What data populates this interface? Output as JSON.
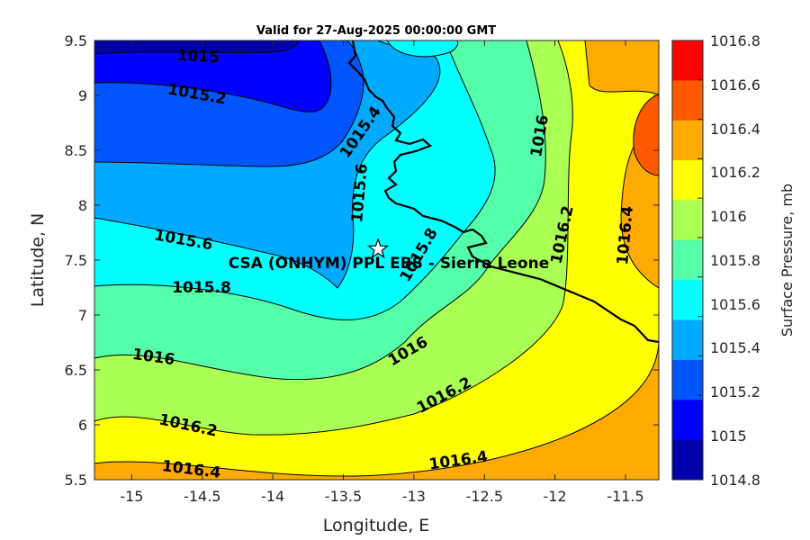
{
  "title": "Valid for 27-Aug-2025 00:00:00 GMT",
  "xlabel": "Longitude, E",
  "ylabel": "Latitude, N",
  "x_ticks": [
    "-15",
    "-14.5",
    "-14",
    "-13.5",
    "-13",
    "-12.5",
    "-12",
    "-11.5"
  ],
  "y_ticks": [
    "9.5",
    "9",
    "8.5",
    "8",
    "7.5",
    "7",
    "6.5",
    "6",
    "5.5"
  ],
  "colorbar": {
    "label": "Surface Pressure, mb",
    "ticks": [
      "1016.8",
      "1016.6",
      "1016.4",
      "1016.2",
      "1016",
      "1015.8",
      "1015.6",
      "1015.4",
      "1015.2",
      "1015",
      "1014.8"
    ],
    "colors": [
      "#ff0000",
      "#ff5a00",
      "#ffaa00",
      "#ffff00",
      "#aaff55",
      "#55ffaa",
      "#00ffff",
      "#00aaff",
      "#0055ff",
      "#0000ff",
      "#0000aa"
    ]
  },
  "site": {
    "label": "CSA (ONHYM) PPL EBS  - Sierra Leone",
    "lon": -13.24,
    "lat": 7.6,
    "marker": "star-icon"
  },
  "contour_labels": [
    "1015",
    "1015.2",
    "1015.4",
    "1015.6",
    "1015.6",
    "1015.8",
    "1015.8",
    "1016",
    "1016",
    "1016",
    "1016.2",
    "1016.2",
    "1016.2",
    "1016.4",
    "1016.4",
    "1016.4"
  ],
  "chart_data": {
    "type": "heatmap",
    "title": "Valid for 27-Aug-2025 00:00:00 GMT",
    "xlabel": "Longitude, E",
    "ylabel": "Latitude, N",
    "xlim": [
      -15.25,
      -11.25
    ],
    "ylim": [
      5.5,
      9.5
    ],
    "colorbar_label": "Surface Pressure, mb",
    "clim": [
      1014.8,
      1016.8
    ],
    "levels": [
      1015,
      1015.2,
      1015.4,
      1015.6,
      1015.8,
      1016,
      1016.2,
      1016.4,
      1016.6
    ],
    "value_range_shown": [
      1014.8,
      1016.6
    ]
  }
}
